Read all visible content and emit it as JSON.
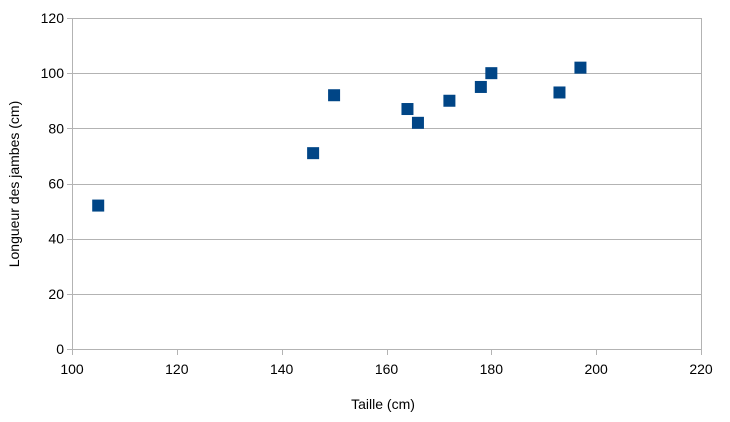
{
  "chart_data": {
    "type": "scatter",
    "xlabel": "Taille (cm)",
    "ylabel": "Longueur des jambes (cm)",
    "xlim": [
      100,
      220
    ],
    "ylim": [
      0,
      120
    ],
    "x_ticks": [
      100,
      120,
      140,
      160,
      180,
      200,
      220
    ],
    "y_ticks": [
      0,
      20,
      40,
      60,
      80,
      100,
      120
    ],
    "grid": true,
    "legend": "none",
    "marker": "square",
    "marker_color": "#004586",
    "points": [
      {
        "x": 105,
        "y": 52
      },
      {
        "x": 146,
        "y": 71
      },
      {
        "x": 150,
        "y": 92
      },
      {
        "x": 164,
        "y": 87
      },
      {
        "x": 166,
        "y": 82
      },
      {
        "x": 172,
        "y": 90
      },
      {
        "x": 178,
        "y": 95
      },
      {
        "x": 180,
        "y": 100
      },
      {
        "x": 193,
        "y": 93
      },
      {
        "x": 197,
        "y": 102
      }
    ]
  }
}
